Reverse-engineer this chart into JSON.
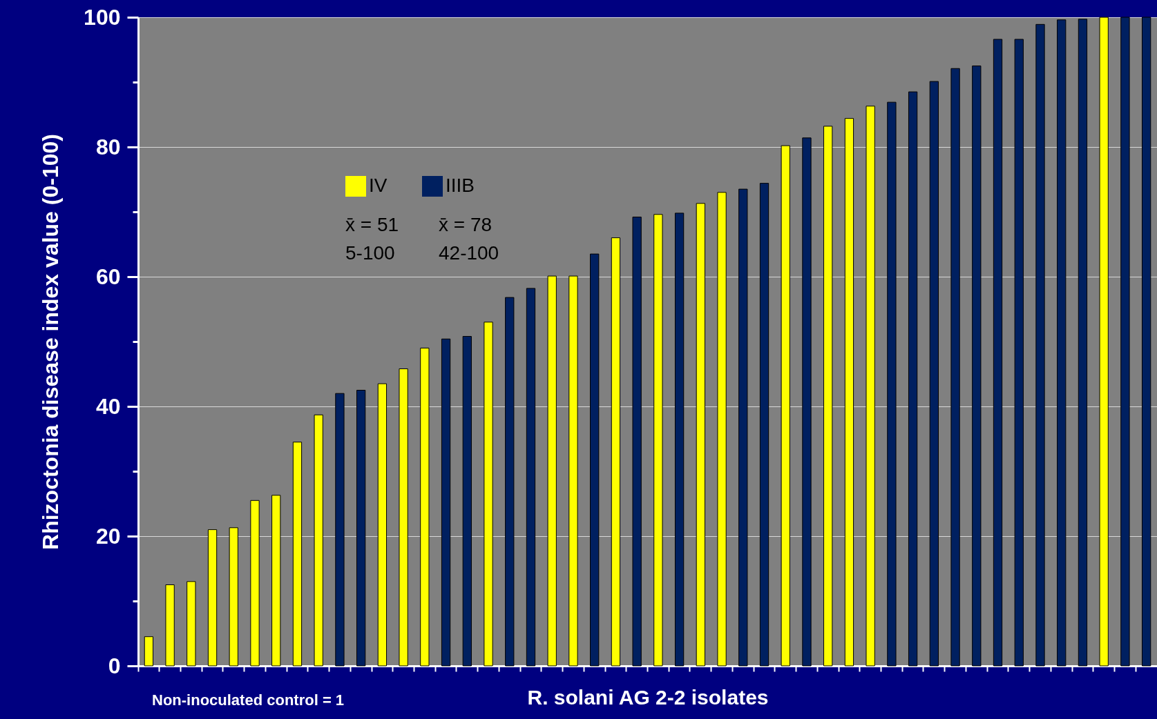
{
  "chart_data": {
    "type": "bar",
    "xlabel": "R. solani AG 2-2 isolates",
    "ylabel": "Rhizoctonia disease index value (0-100)",
    "categories": [
      null,
      null,
      null,
      null,
      null,
      null,
      null,
      null,
      null,
      null,
      null,
      null,
      null,
      null,
      null,
      null,
      null,
      null,
      null,
      null,
      null,
      null,
      null,
      null,
      null,
      null,
      null,
      null,
      null,
      null,
      null,
      null,
      null,
      null,
      null,
      null,
      null,
      null,
      null,
      null,
      null,
      null,
      null,
      null,
      null,
      null,
      null,
      null
    ],
    "series": [
      {
        "name": "IV",
        "color": "#ffff00",
        "values": [
          4.5,
          12.5,
          13,
          21,
          21.3,
          25.5,
          26.3,
          34.5,
          38.7,
          null,
          null,
          43.5,
          45.8,
          49,
          null,
          null,
          53,
          null,
          null,
          60.1,
          60.1,
          null,
          66,
          null,
          69.6,
          null,
          71.3,
          73,
          null,
          null,
          80.2,
          null,
          83.2,
          84.4,
          86.3,
          null,
          null,
          null,
          null,
          null,
          null,
          null,
          null,
          null,
          null,
          100,
          null,
          null
        ]
      },
      {
        "name": "IIIB",
        "color": "#002060",
        "values": [
          null,
          null,
          null,
          null,
          null,
          null,
          null,
          null,
          null,
          42,
          42.5,
          null,
          null,
          null,
          50.4,
          50.8,
          null,
          56.8,
          58.2,
          null,
          null,
          63.5,
          null,
          69.2,
          null,
          69.8,
          null,
          null,
          73.5,
          74.4,
          null,
          81.4,
          null,
          null,
          null,
          86.9,
          88.5,
          90.1,
          92.1,
          92.5,
          96.6,
          96.6,
          98.9,
          99.6,
          99.7,
          null,
          100,
          100
        ]
      }
    ],
    "ylim": [
      0,
      100
    ],
    "yticks": [
      0,
      {
        "value": 10,
        "label": null
      },
      20,
      {
        "value": 30,
        "label": null
      },
      40,
      {
        "value": 50,
        "label": null
      },
      60,
      {
        "value": 70,
        "label": null
      },
      80,
      {
        "value": 90,
        "label": null
      },
      100
    ],
    "grid": "y",
    "legend": "top left",
    "tick_labels": "y",
    "annotations": [
      "x̄ = 51",
      "5-100",
      "x̄ = 78",
      "42-100",
      "Non-inoculated control = 1"
    ]
  }
}
